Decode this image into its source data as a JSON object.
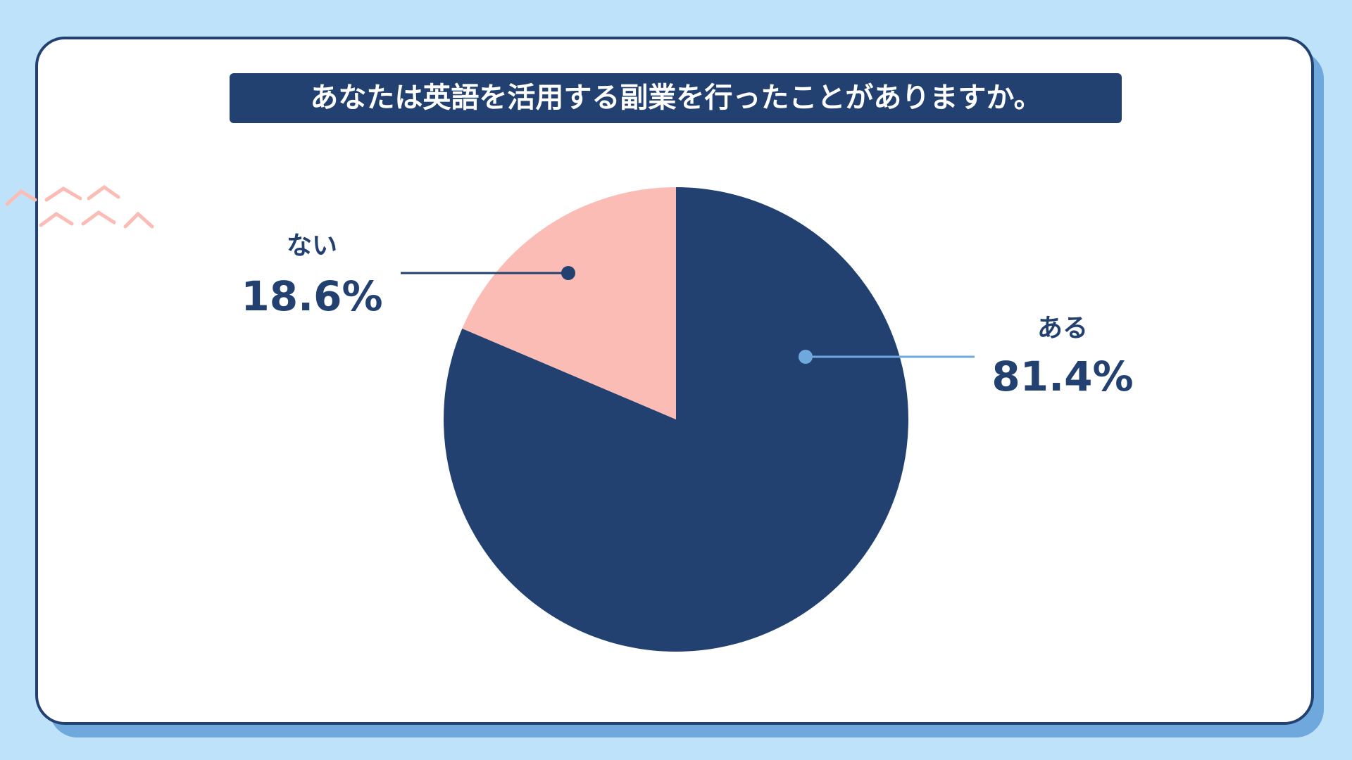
{
  "chart_data": {
    "type": "pie",
    "title": "あなたは英語を活用する副業を行ったことがありますか。",
    "categories": [
      "ある",
      "ない"
    ],
    "values": [
      81.4,
      18.6
    ],
    "value_labels": [
      "81.4%",
      "18.6%"
    ],
    "colors": [
      "#234170",
      "#fcbcb6"
    ]
  }
}
